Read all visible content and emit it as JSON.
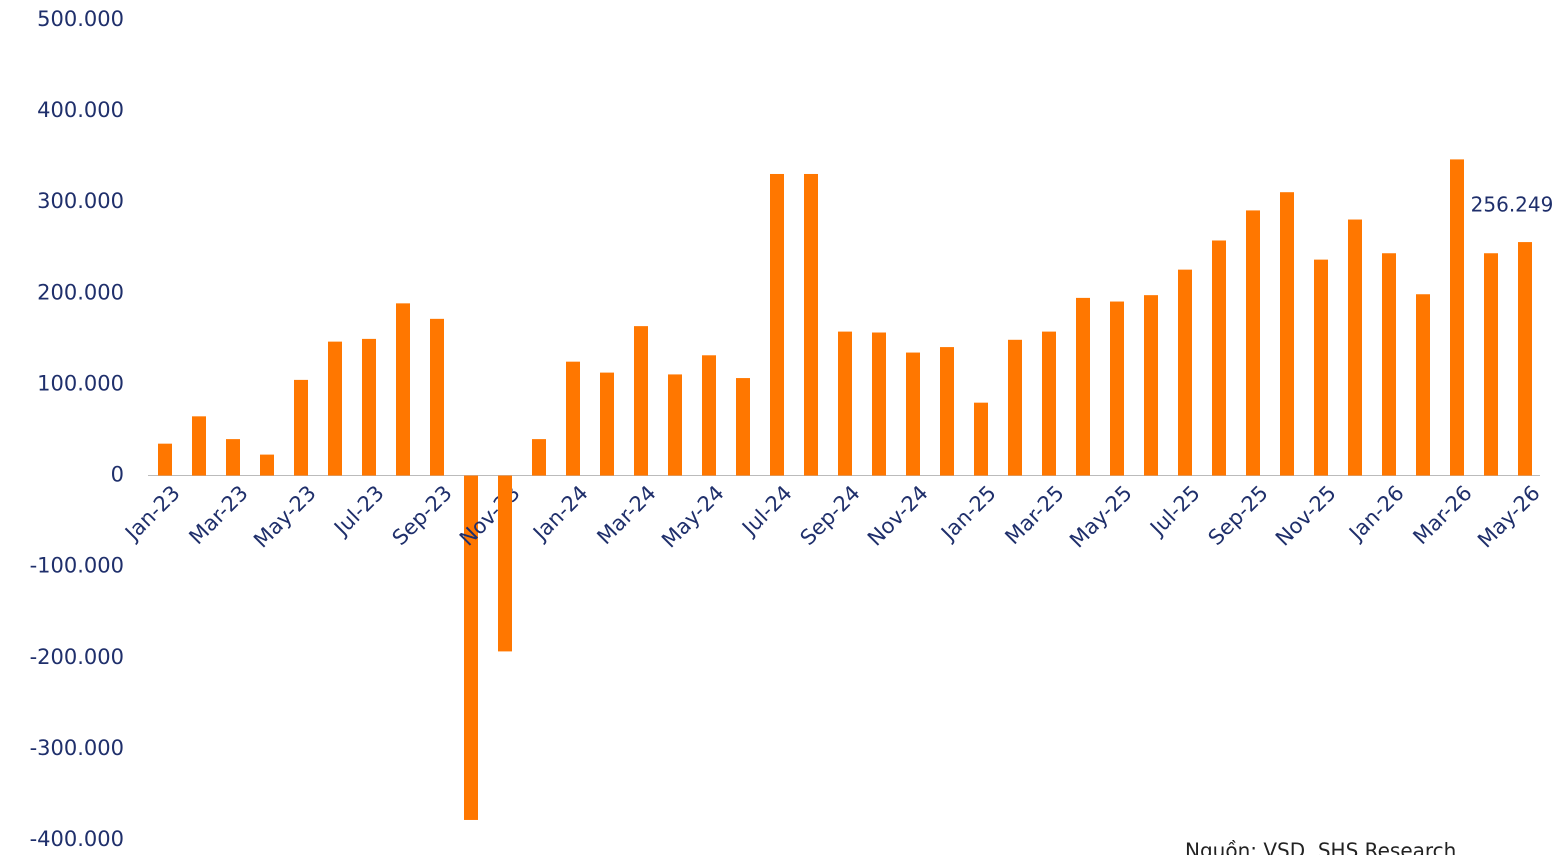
{
  "chart_data": {
    "type": "bar",
    "categories": [
      "Jan-23",
      null,
      "Mar-23",
      null,
      "May-23",
      null,
      "Jul-23",
      null,
      "Sep-23",
      null,
      "Nov-23",
      null,
      "Jan-24",
      null,
      "Mar-24",
      null,
      "May-24",
      null,
      "Jul-24",
      null,
      "Sep-24",
      null,
      "Nov-24",
      null,
      "Jan-25",
      null,
      "Mar-25",
      null,
      "May-25",
      null,
      "Jul-25",
      null,
      "Sep-25",
      null,
      "Nov-25",
      null,
      "Jan-26",
      null,
      "Mar-26",
      null,
      "May-26"
    ],
    "values": [
      35000,
      65000,
      40000,
      23000,
      105000,
      147000,
      150000,
      189000,
      172000,
      -378000,
      -193000,
      40000,
      125000,
      113000,
      164000,
      111000,
      132000,
      107000,
      331000,
      331000,
      158000,
      157000,
      135000,
      141000,
      80000,
      149000,
      158000,
      195000,
      191000,
      198000,
      226000,
      258000,
      291000,
      311000,
      237000,
      281000,
      244000,
      199000,
      347000,
      244000,
      256249
    ],
    "value_labels": [
      null,
      null,
      null,
      null,
      null,
      null,
      null,
      null,
      null,
      null,
      null,
      null,
      null,
      null,
      null,
      null,
      null,
      null,
      null,
      null,
      null,
      null,
      null,
      null,
      null,
      null,
      null,
      null,
      null,
      null,
      null,
      null,
      null,
      null,
      null,
      null,
      null,
      null,
      null,
      null,
      "256.249"
    ],
    "color": "#ff7700",
    "ylim": [
      -400000,
      500000
    ],
    "yticks": [
      {
        "value": -400000,
        "label": "-400.000"
      },
      {
        "value": -300000,
        "label": "-300.000"
      },
      {
        "value": -200000,
        "label": "-200.000"
      },
      {
        "value": -100000,
        "label": "-100.000"
      },
      0,
      {
        "value": 100000,
        "label": "100.000"
      },
      {
        "value": 200000,
        "label": "200.000"
      },
      {
        "value": 300000,
        "label": "300.000"
      },
      {
        "value": 400000,
        "label": "400.000"
      },
      {
        "value": 500000,
        "label": "500.000"
      }
    ],
    "grid": false,
    "source": "Nguồn: VSD, SHS Research"
  }
}
